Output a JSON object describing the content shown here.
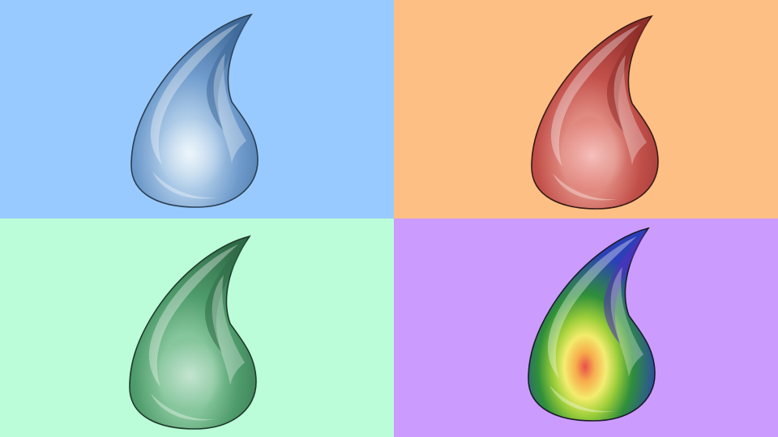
{
  "panels": [
    {
      "id": "top-left",
      "icon": "water-drop-icon",
      "background": "#99caff",
      "drop": {
        "style": "solid",
        "main": "#6f9bcc",
        "light": "#a9c8e6",
        "dark": "#3f6a99",
        "core": "#d6e9f5",
        "stroke": "#2b3f52"
      }
    },
    {
      "id": "top-right",
      "icon": "water-drop-icon",
      "background": "#fdbf84",
      "drop": {
        "style": "solid",
        "main": "#c2504a",
        "light": "#e08a80",
        "dark": "#8f2e2a",
        "core": "#e8736c",
        "stroke": "#3a1a16"
      }
    },
    {
      "id": "bottom-left",
      "icon": "water-drop-icon",
      "background": "#bbfcd9",
      "drop": {
        "style": "solid",
        "main": "#4f9c6c",
        "light": "#86c69c",
        "dark": "#2f6b47",
        "core": "#7fc49a",
        "stroke": "#1f3a2a"
      }
    },
    {
      "id": "bottom-right",
      "icon": "water-drop-icon",
      "background": "#cb9cfd",
      "drop": {
        "style": "rainbow",
        "main": "#3c9a3a",
        "light": "#9fd4f0",
        "dark": "#2b3fb8",
        "core": "#e4332a",
        "stroke": "#1a1a2a",
        "rings": [
          "#2b3fb8",
          "#2f8f3a",
          "#9ecf3a",
          "#f3ec6a",
          "#f6a43a",
          "#e4332a"
        ]
      }
    }
  ]
}
